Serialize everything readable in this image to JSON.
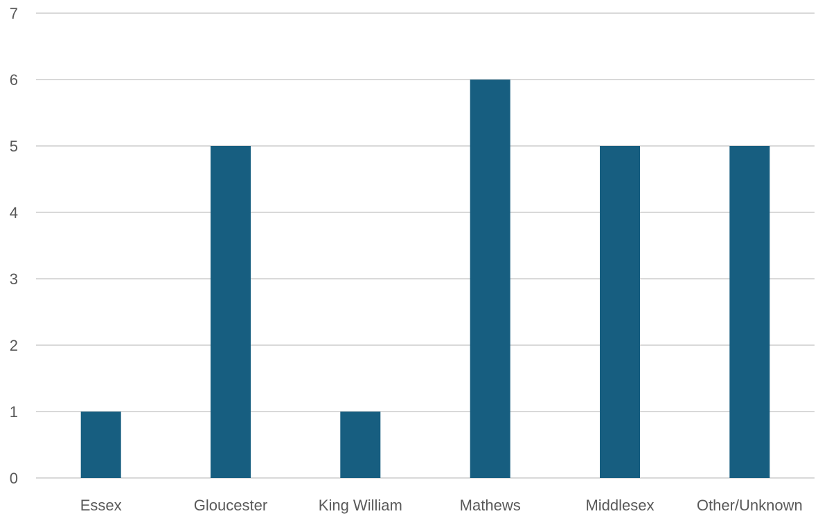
{
  "chart_data": {
    "type": "bar",
    "categories": [
      "Essex",
      "Gloucester",
      "King William",
      "Mathews",
      "Middlesex",
      "Other/Unknown"
    ],
    "values": [
      1,
      5,
      1,
      6,
      5,
      5
    ],
    "title": "",
    "xlabel": "",
    "ylabel": "",
    "ylim": [
      0,
      7
    ],
    "yticks": [
      "0",
      "1",
      "2",
      "3",
      "4",
      "5",
      "6",
      "7"
    ],
    "grid": true,
    "legend": "none",
    "bar_color": "#175E80",
    "grid_color": "#D9D9D9",
    "label_color": "#595959"
  }
}
